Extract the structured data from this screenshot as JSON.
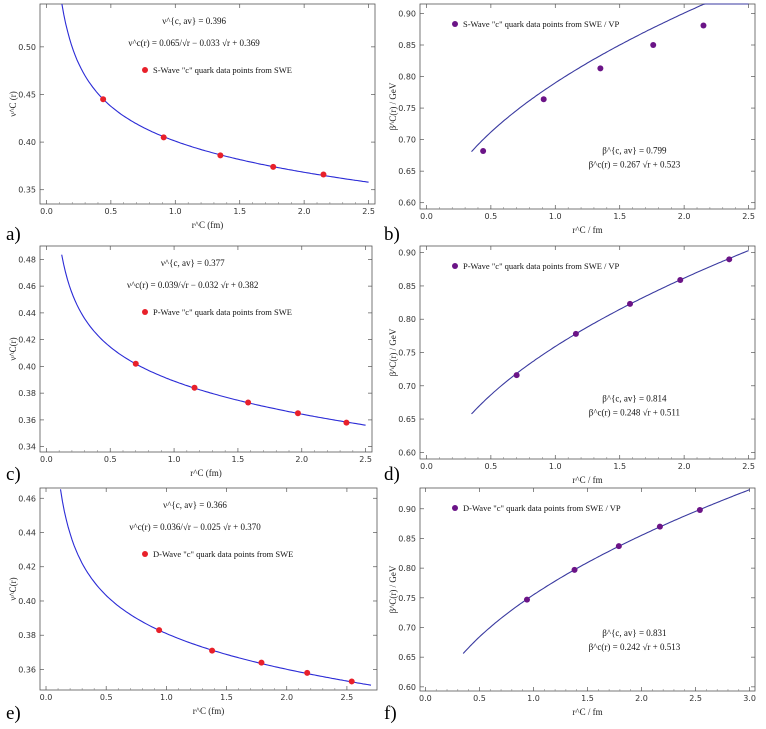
{
  "chart_data": [
    {
      "type": "scatter",
      "panel_label": "a)",
      "xlabel": "r^C (fm)",
      "ylabel": "ν^C (r)",
      "xlim": [
        -0.05,
        2.55
      ],
      "ylim": [
        0.335,
        0.545
      ],
      "xticks": [
        0.0,
        0.5,
        1.0,
        1.5,
        2.0,
        2.5
      ],
      "yticks": [
        0.35,
        0.4,
        0.45,
        0.5
      ],
      "xtick_labels": [
        "0.0",
        "0.5",
        "1.0",
        "1.5",
        "2.0",
        "2.5"
      ],
      "ytick_labels": [
        "0.35",
        "0.40",
        "0.45",
        "0.50"
      ],
      "series": [
        {
          "name": "S-Wave \"c\" quark data points from SWE",
          "x": [
            0.44,
            0.91,
            1.35,
            1.76,
            2.15
          ],
          "y": [
            0.445,
            0.405,
            0.386,
            0.374,
            0.366
          ],
          "color": "#e8202a"
        }
      ],
      "fit": {
        "kind": "nu",
        "a": 0.065,
        "b": -0.033,
        "c": 0.369,
        "x_start": 0.12,
        "x_end": 2.5,
        "color": "#2b2bd6"
      },
      "annotations": [
        "ν^{c, av} = 0.396",
        "ν^c(r) = 0.065/√r − 0.033 √r + 0.369"
      ],
      "legend_position": "top-center"
    },
    {
      "type": "scatter",
      "panel_label": "b)",
      "xlabel": "r^C / fm",
      "ylabel": "β^C(r) / GeV",
      "xlim": [
        -0.05,
        2.55
      ],
      "ylim": [
        0.59,
        0.915
      ],
      "xticks": [
        0.0,
        0.5,
        1.0,
        1.5,
        2.0,
        2.5
      ],
      "yticks": [
        0.6,
        0.65,
        0.7,
        0.75,
        0.8,
        0.85,
        0.9
      ],
      "xtick_labels": [
        "0.0",
        "0.5",
        "1.0",
        "1.5",
        "2.0",
        "2.5"
      ],
      "ytick_labels": [
        "0.60",
        "0.65",
        "0.70",
        "0.75",
        "0.80",
        "0.85",
        "0.90"
      ],
      "series": [
        {
          "name": "S-Wave \"c\" quark data points from SWE / VP",
          "x": [
            0.44,
            0.91,
            1.35,
            1.76,
            2.15
          ],
          "y": [
            0.682,
            0.764,
            0.813,
            0.85,
            0.881
          ],
          "color": "#6b1487"
        }
      ],
      "fit": {
        "kind": "beta",
        "a": 0.267,
        "c": 0.523,
        "x_start": 0.35,
        "x_end": 2.5,
        "color": "#3a3aa0"
      },
      "annotations": [
        "β^{c, av} = 0.799",
        "β^c(r) = 0.267 √r + 0.523"
      ],
      "legend_position": "top-left"
    },
    {
      "type": "scatter",
      "panel_label": "c)",
      "xlabel": "r^C (fm)",
      "ylabel": "ν^C(r)",
      "xlim": [
        -0.05,
        2.55
      ],
      "ylim": [
        0.336,
        0.49
      ],
      "xticks": [
        0.0,
        0.5,
        1.0,
        1.5,
        2.0,
        2.5
      ],
      "yticks": [
        0.34,
        0.36,
        0.38,
        0.4,
        0.42,
        0.44,
        0.46,
        0.48
      ],
      "xtick_labels": [
        "0.0",
        "0.5",
        "1.0",
        "1.5",
        "2.0",
        "2.5"
      ],
      "ytick_labels": [
        "0.34",
        "0.36",
        "0.38",
        "0.40",
        "0.42",
        "0.44",
        "0.46",
        "0.48"
      ],
      "series": [
        {
          "name": "P-Wave \"c\" quark data points from SWE",
          "x": [
            0.7,
            1.16,
            1.58,
            1.97,
            2.35
          ],
          "y": [
            0.402,
            0.384,
            0.373,
            0.365,
            0.358
          ],
          "color": "#e8202a"
        }
      ],
      "fit": {
        "kind": "nu",
        "a": 0.039,
        "b": -0.032,
        "c": 0.382,
        "x_start": 0.12,
        "x_end": 2.5,
        "color": "#2b2bd6"
      },
      "annotations": [
        "ν^{c, av} = 0.377",
        "ν^c(r) = 0.039/√r − 0.032 √r + 0.382"
      ],
      "legend_position": "top-center"
    },
    {
      "type": "scatter",
      "panel_label": "d)",
      "xlabel": "r^C / fm",
      "ylabel": "β^C(r) / GeV",
      "xlim": [
        -0.05,
        2.55
      ],
      "ylim": [
        0.59,
        0.91
      ],
      "xticks": [
        0.0,
        0.5,
        1.0,
        1.5,
        2.0,
        2.5
      ],
      "yticks": [
        0.6,
        0.65,
        0.7,
        0.75,
        0.8,
        0.85,
        0.9
      ],
      "xtick_labels": [
        "0.0",
        "0.5",
        "1.0",
        "1.5",
        "2.0",
        "2.5"
      ],
      "ytick_labels": [
        "0.60",
        "0.65",
        "0.70",
        "0.75",
        "0.80",
        "0.85",
        "0.90"
      ],
      "series": [
        {
          "name": "P-Wave \"c\" quark data points from SWE / VP",
          "x": [
            0.7,
            1.16,
            1.58,
            1.97,
            2.35
          ],
          "y": [
            0.716,
            0.778,
            0.823,
            0.859,
            0.89
          ],
          "color": "#6b1487"
        }
      ],
      "fit": {
        "kind": "beta",
        "a": 0.248,
        "c": 0.511,
        "x_start": 0.35,
        "x_end": 2.5,
        "color": "#3a3aa0"
      },
      "annotations": [
        "β^{c, av} = 0.814",
        "β^c(r) = 0.248 √r + 0.511"
      ],
      "legend_position": "top-left"
    },
    {
      "type": "scatter",
      "panel_label": "e)",
      "xlabel": "r^C (fm)",
      "ylabel": "ν^C(r)",
      "xlim": [
        -0.05,
        2.75
      ],
      "ylim": [
        0.348,
        0.466
      ],
      "xticks": [
        0.0,
        0.5,
        1.0,
        1.5,
        2.0,
        2.5
      ],
      "yticks": [
        0.36,
        0.38,
        0.4,
        0.42,
        0.44,
        0.46
      ],
      "xtick_labels": [
        "0.0",
        "0.5",
        "1.0",
        "1.5",
        "2.0",
        "2.5"
      ],
      "ytick_labels": [
        "0.36",
        "0.38",
        "0.40",
        "0.42",
        "0.44",
        "0.46"
      ],
      "series": [
        {
          "name": "D-Wave \"c\" quark data points from SWE",
          "x": [
            0.94,
            1.38,
            1.79,
            2.17,
            2.54
          ],
          "y": [
            0.383,
            0.371,
            0.364,
            0.358,
            0.353
          ],
          "color": "#e8202a"
        }
      ],
      "fit": {
        "kind": "nu",
        "a": 0.036,
        "b": -0.025,
        "c": 0.37,
        "x_start": 0.12,
        "x_end": 2.7,
        "color": "#2b2bd6"
      },
      "annotations": [
        "ν^{c, av} = 0.366",
        "ν^c(r) = 0.036/√r − 0.025 √r + 0.370"
      ],
      "legend_position": "top-center"
    },
    {
      "type": "scatter",
      "panel_label": "f)",
      "xlabel": "r^C / fm",
      "ylabel": "β^C(r) / GeV",
      "xlim": [
        -0.05,
        3.05
      ],
      "ylim": [
        0.593,
        0.935
      ],
      "xticks": [
        0.0,
        0.5,
        1.0,
        1.5,
        2.0,
        2.5,
        3.0
      ],
      "yticks": [
        0.6,
        0.65,
        0.7,
        0.75,
        0.8,
        0.85,
        0.9
      ],
      "xtick_labels": [
        "0.0",
        "0.5",
        "1.0",
        "1.5",
        "2.0",
        "2.5",
        "3.0"
      ],
      "ytick_labels": [
        "0.60",
        "0.65",
        "0.70",
        "0.75",
        "0.80",
        "0.85",
        "0.90"
      ],
      "series": [
        {
          "name": "D-Wave \"c\" quark data points from SWE / VP",
          "x": [
            0.94,
            1.38,
            1.79,
            2.17,
            2.54
          ],
          "y": [
            0.747,
            0.797,
            0.837,
            0.87,
            0.898
          ],
          "color": "#6b1487"
        }
      ],
      "fit": {
        "kind": "beta",
        "a": 0.242,
        "c": 0.513,
        "x_start": 0.35,
        "x_end": 3.0,
        "color": "#3a3aa0"
      },
      "annotations": [
        "β^{c, av} = 0.831",
        "β^c(r) = 0.242 √r + 0.513"
      ],
      "legend_position": "top-left"
    }
  ]
}
